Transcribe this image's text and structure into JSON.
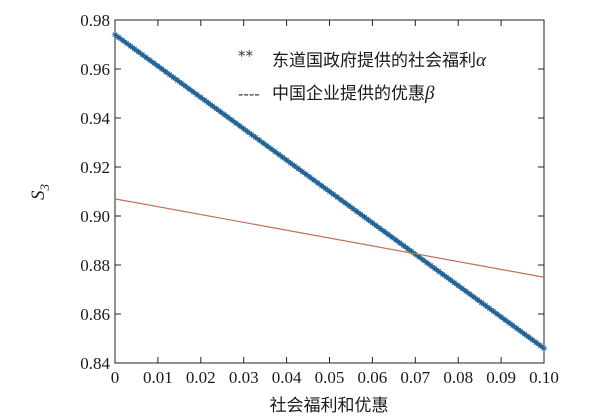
{
  "chart_data": {
    "type": "line",
    "xlabel": "社会福利和优惠",
    "ylabel": "S",
    "ylabel_sub": "3",
    "xlim": [
      0,
      0.1
    ],
    "ylim": [
      0.84,
      0.98
    ],
    "x_ticks": [
      "0",
      "0.01",
      "0.02",
      "0.03",
      "0.04",
      "0.05",
      "0.06",
      "0.07",
      "0.08",
      "0.09",
      "0.10"
    ],
    "y_ticks": [
      "0.84",
      "0.86",
      "0.88",
      "0.90",
      "0.92",
      "0.94",
      "0.96",
      "0.98"
    ],
    "grid": false,
    "legend_position": "top-right",
    "series": [
      {
        "name": "东道国政府提供的社会福利",
        "symbol": "α",
        "marker_label": "**",
        "style": "star-markers",
        "color": "#3a7fb5",
        "x": [
          0,
          0.1
        ],
        "y": [
          0.974,
          0.846
        ]
      },
      {
        "name": "中国企业提供的优惠",
        "symbol": "β",
        "marker_label": "----",
        "style": "line",
        "color": "#c0705a",
        "x": [
          0,
          0.1
        ],
        "y": [
          0.907,
          0.875
        ]
      }
    ]
  }
}
